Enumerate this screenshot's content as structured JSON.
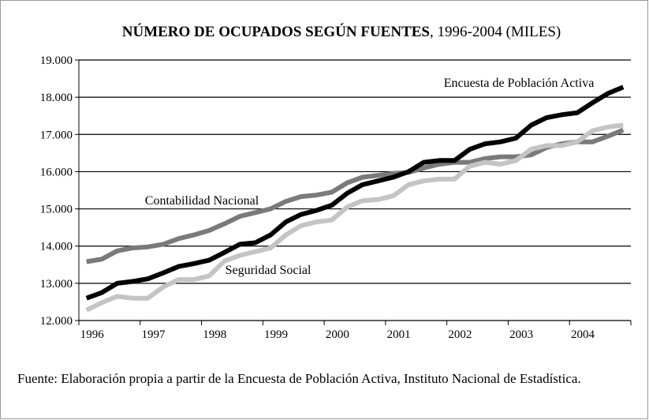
{
  "chart_data": {
    "type": "line",
    "title": "NÚMERO DE OCUPADOS SEGÚN FUENTES",
    "subtitle": ", 1996-2004 (MILES)",
    "source": "Fuente: Elaboración propia a partir de la Encuesta de Población Activa, Instituto Nacional de Estadística.",
    "categories": [
      "1996",
      null,
      null,
      null,
      "1997",
      null,
      null,
      null,
      "1998",
      null,
      null,
      null,
      "1999",
      null,
      null,
      null,
      "2000",
      null,
      null,
      null,
      "2001",
      null,
      null,
      null,
      "2002",
      null,
      null,
      null,
      "2003",
      null,
      null,
      null,
      "2004",
      null,
      null,
      null
    ],
    "ylim": [
      12000,
      19000
    ],
    "yticks": [
      {
        "value": 12000,
        "label": "12.000"
      },
      {
        "value": 13000,
        "label": "13.000"
      },
      {
        "value": 14000,
        "label": "14.000"
      },
      {
        "value": 15000,
        "label": "15.000"
      },
      {
        "value": 16000,
        "label": "16.000"
      },
      {
        "value": 17000,
        "label": "17.000"
      },
      {
        "value": 18000,
        "label": "18.000"
      },
      {
        "value": 19000,
        "label": "19.000"
      }
    ],
    "grid": true,
    "series": [
      {
        "name": "Contabilidad Nacional",
        "color": "#7a7a7a",
        "values": [
          13580,
          13650,
          13870,
          13950,
          13980,
          14050,
          14200,
          14300,
          14420,
          14600,
          14800,
          14900,
          15000,
          15200,
          15330,
          15370,
          15450,
          15700,
          15850,
          15900,
          15950,
          15980,
          16100,
          16200,
          16250,
          16250,
          16350,
          16400,
          16400,
          16450,
          16650,
          16750,
          16800,
          16800,
          16950,
          17120
        ]
      },
      {
        "name": "Seguridad Social",
        "color": "#c4c4c4",
        "values": [
          12280,
          12480,
          12650,
          12600,
          12600,
          12900,
          13100,
          13100,
          13200,
          13600,
          13750,
          13850,
          13950,
          14300,
          14550,
          14650,
          14700,
          15050,
          15220,
          15250,
          15350,
          15650,
          15750,
          15800,
          15800,
          16150,
          16250,
          16200,
          16300,
          16600,
          16700,
          16700,
          16800,
          17100,
          17200,
          17250
        ]
      },
      {
        "name": "Encuesta de Población Activa",
        "color": "#000000",
        "values": [
          12600,
          12750,
          13000,
          13050,
          13120,
          13280,
          13450,
          13530,
          13620,
          13830,
          14050,
          14090,
          14300,
          14650,
          14850,
          14960,
          15100,
          15420,
          15650,
          15750,
          15850,
          16000,
          16250,
          16300,
          16300,
          16600,
          16750,
          16800,
          16900,
          17250,
          17450,
          17530,
          17580,
          17850,
          18100,
          18270
        ]
      }
    ]
  }
}
